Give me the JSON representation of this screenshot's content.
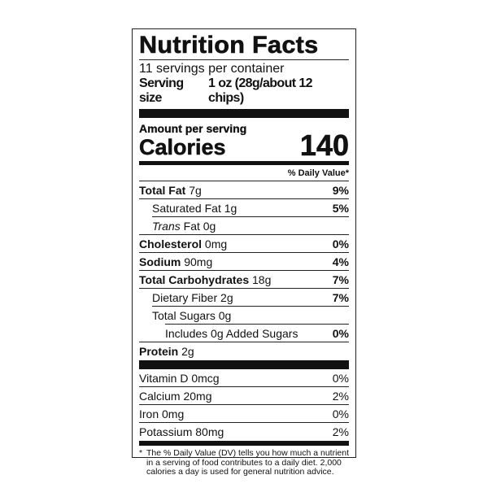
{
  "title": "Nutrition Facts",
  "servings_per_container": "11 servings per container",
  "serving_size_label": "Serving size",
  "serving_size_value": "1 oz (28g/about 12 chips)",
  "amount_per_serving": "Amount per serving",
  "calories_label": "Calories",
  "calories_value": "140",
  "daily_value_header": "% Daily Value*",
  "nutrients": [
    {
      "name": "Total Fat",
      "amount": "7g",
      "dv": "9%"
    },
    {
      "name": "Saturated Fat",
      "amount": "1g",
      "dv": "5%"
    },
    {
      "name": "Trans",
      "name_suffix": "Fat",
      "amount": "0g",
      "dv": ""
    },
    {
      "name": "Cholesterol",
      "amount": "0mg",
      "dv": "0%"
    },
    {
      "name": "Sodium",
      "amount": "90mg",
      "dv": "4%"
    },
    {
      "name": "Total Carbohydrates",
      "amount": "18g",
      "dv": "7%"
    },
    {
      "name": "Dietary Fiber",
      "amount": "2g",
      "dv": "7%"
    },
    {
      "name": "Total Sugars",
      "amount": "0g",
      "dv": ""
    },
    {
      "name": "Includes 0g Added Sugars",
      "amount": "",
      "dv": "0%"
    },
    {
      "name": "Protein",
      "amount": "2g",
      "dv": ""
    }
  ],
  "vitamins": [
    {
      "name": "Vitamin D 0mcg",
      "dv": "0%"
    },
    {
      "name": "Calcium 20mg",
      "dv": "2%"
    },
    {
      "name": "Iron 0mg",
      "dv": "0%"
    },
    {
      "name": "Potassium 80mg",
      "dv": "2%"
    }
  ],
  "footnote_star": "*",
  "footnote": "The % Daily Value (DV) tells you how much a nutrient in a serving of food contributes to a daily diet. 2,000 calories a day is used for general nutrition advice."
}
